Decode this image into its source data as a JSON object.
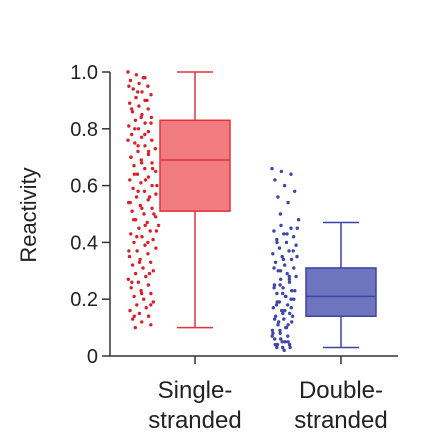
{
  "chart_data": {
    "type": "box",
    "ylabel": "Reactivity",
    "ylim": [
      0,
      1.0
    ],
    "yticks": [
      {
        "value": 0,
        "label": "0"
      },
      {
        "value": 0.2,
        "label": "0.2"
      },
      {
        "value": 0.4,
        "label": "0.4"
      },
      {
        "value": 0.6,
        "label": "0.6"
      },
      {
        "value": 0.8,
        "label": "0.8"
      },
      {
        "value": 1.0,
        "label": "1.0"
      }
    ],
    "categories": [
      {
        "line1": "Single-",
        "line2": "stranded"
      },
      {
        "line1": "Double-",
        "line2": "stranded"
      }
    ],
    "boxes": [
      {
        "min": 0.1,
        "q1": 0.51,
        "median": 0.69,
        "q3": 0.83,
        "max": 1.0,
        "fill": "#f07c80",
        "stroke": "#e0333c",
        "point_color": "#d8202a"
      },
      {
        "min": 0.03,
        "q1": 0.14,
        "median": 0.21,
        "q3": 0.31,
        "max": 0.47,
        "fill": "#6f74bf",
        "stroke": "#3c44a6",
        "point_color": "#3e46a8"
      }
    ],
    "points": [
      [
        1.0,
        0.99,
        0.98,
        0.97,
        0.96,
        0.95,
        0.94,
        0.93,
        0.92,
        0.91,
        0.9,
        0.89,
        0.88,
        0.87,
        0.86,
        0.85,
        0.84,
        0.83,
        0.82,
        0.81,
        0.8,
        0.79,
        0.78,
        0.77,
        0.76,
        0.75,
        0.74,
        0.73,
        0.72,
        0.71,
        0.7,
        0.69,
        0.68,
        0.67,
        0.66,
        0.65,
        0.64,
        0.63,
        0.62,
        0.61,
        0.6,
        0.59,
        0.58,
        0.57,
        0.56,
        0.55,
        0.54,
        0.53,
        0.52,
        0.51,
        0.5,
        0.49,
        0.48,
        0.47,
        0.46,
        0.45,
        0.44,
        0.43,
        0.42,
        0.41,
        0.4,
        0.39,
        0.38,
        0.37,
        0.36,
        0.35,
        0.34,
        0.33,
        0.32,
        0.31,
        0.3,
        0.29,
        0.28,
        0.27,
        0.26,
        0.25,
        0.24,
        0.23,
        0.22,
        0.21,
        0.2,
        0.19,
        0.18,
        0.17,
        0.16,
        0.15,
        0.14,
        0.13,
        0.12,
        0.11,
        0.1,
        0.98,
        0.95,
        0.93,
        0.9,
        0.87,
        0.84,
        0.82,
        0.8,
        0.78,
        0.76,
        0.74,
        0.72,
        0.7,
        0.68,
        0.66,
        0.64,
        0.62,
        0.6,
        0.58,
        0.56,
        0.54,
        0.52,
        0.5,
        0.48,
        0.46,
        0.44,
        0.42,
        0.4,
        0.37,
        0.33,
        0.29,
        0.26,
        0.22,
        0.18,
        0.14
      ],
      [
        0.66,
        0.65,
        0.64,
        0.62,
        0.6,
        0.58,
        0.56,
        0.54,
        0.48,
        0.46,
        0.45,
        0.44,
        0.43,
        0.42,
        0.41,
        0.4,
        0.39,
        0.38,
        0.37,
        0.36,
        0.35,
        0.34,
        0.33,
        0.32,
        0.31,
        0.3,
        0.29,
        0.28,
        0.27,
        0.26,
        0.25,
        0.24,
        0.23,
        0.22,
        0.21,
        0.2,
        0.19,
        0.18,
        0.17,
        0.16,
        0.15,
        0.14,
        0.13,
        0.12,
        0.11,
        0.1,
        0.09,
        0.08,
        0.07,
        0.06,
        0.05,
        0.04,
        0.03,
        0.02,
        0.35,
        0.3,
        0.27,
        0.24,
        0.22,
        0.2,
        0.18,
        0.16,
        0.14,
        0.12,
        0.1,
        0.08,
        0.06,
        0.05,
        0.04,
        0.03,
        0.03,
        0.04,
        0.05,
        0.07,
        0.09,
        0.11,
        0.13,
        0.15,
        0.17,
        0.19,
        0.21,
        0.23,
        0.25,
        0.28,
        0.31,
        0.34,
        0.37,
        0.4,
        0.43,
        0.45,
        0.5
      ]
    ]
  }
}
